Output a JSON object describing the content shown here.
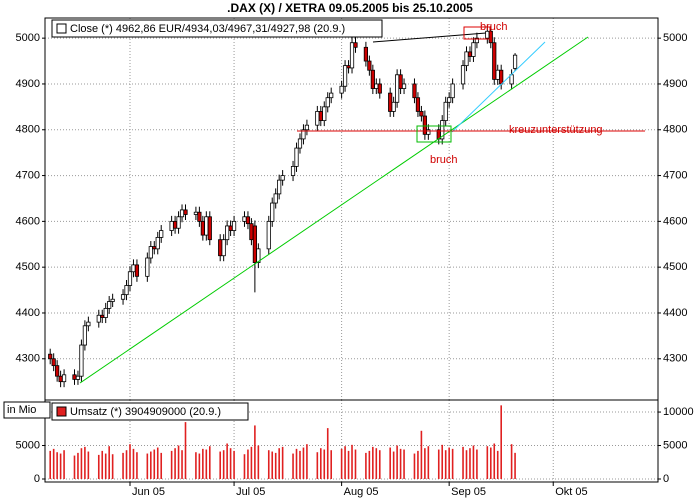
{
  "chart_data": [
    {
      "type": "candlestick",
      "title": ".DAX (X) / XETRA 09.05.2005 bis 25.10.2005",
      "annotations": [
        "bruch",
        "bruch",
        "kreuzunterstützung"
      ],
      "series": [
        {
          "name": "Close (*) 4962,86 EUR/4934,03/4967,31/4927,98 (20.9.)",
          "color": "#cc0000",
          "x": [
            0,
            1,
            2,
            3,
            4,
            7,
            8,
            9,
            10,
            11,
            14,
            15,
            16,
            17,
            18,
            21,
            22,
            23,
            24,
            25,
            28,
            29,
            30,
            31,
            32,
            35,
            36,
            37,
            38,
            39,
            42,
            43,
            44,
            45,
            46,
            49,
            50,
            51,
            52,
            53,
            56,
            57,
            58,
            59,
            60,
            63,
            64,
            65,
            66,
            67,
            70,
            71,
            72,
            73,
            74,
            77,
            78,
            79,
            80,
            81,
            84,
            85,
            86,
            87,
            88,
            91,
            92,
            93,
            94,
            95,
            98,
            99,
            100,
            101,
            102,
            105,
            106,
            107,
            108,
            109,
            112,
            113,
            114,
            115,
            116,
            119,
            120,
            121,
            122,
            123,
            126,
            127,
            128,
            129,
            130,
            133,
            134
          ],
          "open": [
            4310,
            4300,
            4285,
            4262,
            4250,
            4265,
            4255,
            4262,
            4330,
            4372,
            4380,
            4395,
            4390,
            4410,
            4425,
            4430,
            4440,
            4460,
            4490,
            4505,
            4480,
            4520,
            4545,
            4540,
            4565,
            4580,
            4600,
            4585,
            4610,
            4625,
            4615,
            4620,
            4600,
            4570,
            4610,
            4560,
            4525,
            4560,
            4590,
            4580,
            4600,
            4610,
            4595,
            4590,
            4510,
            4540,
            4600,
            4640,
            4660,
            4690,
            4700,
            4720,
            4760,
            4780,
            4800,
            4810,
            4840,
            4820,
            4850,
            4870,
            4880,
            4895,
            4940,
            4935,
            4990,
            4980,
            4950,
            4930,
            4890,
            4900,
            4880,
            4840,
            4860,
            4920,
            4890,
            4900,
            4870,
            4840,
            4830,
            4790,
            4800,
            4780,
            4820,
            4860,
            4870,
            4900,
            4940,
            4970,
            4960,
            4990,
            5000,
            5015,
            4990,
            4910,
            4930,
            4900,
            4934.03
          ],
          "high": [
            4322,
            4312,
            4297,
            4274,
            4277,
            4277,
            4274,
            4342,
            4384,
            4392,
            4407,
            4407,
            4422,
            4437,
            4442,
            4452,
            4472,
            4502,
            4517,
            4517,
            4532,
            4557,
            4557,
            4577,
            4592,
            4612,
            4612,
            4622,
            4637,
            4637,
            4632,
            4632,
            4612,
            4622,
            4622,
            4572,
            4572,
            4602,
            4602,
            4612,
            4622,
            4622,
            4607,
            4602,
            4552,
            4612,
            4652,
            4672,
            4702,
            4712,
            4732,
            4772,
            4792,
            4812,
            4822,
            4852,
            4852,
            4862,
            4882,
            4892,
            4907,
            4952,
            4952,
            5002,
            5002,
            4992,
            4962,
            4942,
            4912,
            4912,
            4892,
            4872,
            4932,
            4932,
            4912,
            4912,
            4882,
            4852,
            4842,
            4812,
            4812,
            4832,
            4872,
            4882,
            4912,
            4952,
            4982,
            4982,
            5002,
            5012,
            5027,
            5027,
            5002,
            4942,
            4942,
            4932,
            4967.31
          ],
          "low": [
            4288,
            4273,
            4250,
            4238,
            4238,
            4243,
            4243,
            4250,
            4318,
            4360,
            4368,
            4378,
            4378,
            4398,
            4413,
            4418,
            4428,
            4448,
            4478,
            4468,
            4468,
            4508,
            4528,
            4528,
            4553,
            4568,
            4573,
            4573,
            4598,
            4603,
            4603,
            4588,
            4558,
            4558,
            4548,
            4513,
            4513,
            4548,
            4568,
            4568,
            4588,
            4583,
            4548,
            4445,
            4498,
            4528,
            4588,
            4628,
            4648,
            4678,
            4688,
            4708,
            4748,
            4768,
            4788,
            4798,
            4808,
            4808,
            4838,
            4858,
            4868,
            4883,
            4923,
            4923,
            4968,
            4938,
            4918,
            4878,
            4878,
            4868,
            4828,
            4828,
            4848,
            4878,
            4878,
            4858,
            4828,
            4818,
            4778,
            4778,
            4768,
            4768,
            4808,
            4848,
            4858,
            4888,
            4928,
            4948,
            4948,
            4978,
            4988,
            4978,
            4898,
            4898,
            4888,
            4888,
            4927.98
          ],
          "close": [
            4300,
            4285,
            4262,
            4250,
            4265,
            4255,
            4262,
            4330,
            4372,
            4380,
            4395,
            4390,
            4410,
            4425,
            4430,
            4440,
            4460,
            4490,
            4505,
            4480,
            4520,
            4545,
            4540,
            4565,
            4580,
            4600,
            4585,
            4610,
            4625,
            4615,
            4620,
            4600,
            4570,
            4610,
            4560,
            4525,
            4560,
            4590,
            4580,
            4600,
            4610,
            4595,
            4560,
            4510,
            4540,
            4600,
            4640,
            4660,
            4690,
            4700,
            4720,
            4760,
            4780,
            4800,
            4810,
            4840,
            4820,
            4850,
            4870,
            4880,
            4895,
            4940,
            4935,
            4990,
            4980,
            4950,
            4930,
            4890,
            4900,
            4880,
            4840,
            4860,
            4920,
            4890,
            4900,
            4870,
            4840,
            4830,
            4790,
            4800,
            4780,
            4820,
            4860,
            4870,
            4900,
            4940,
            4970,
            4960,
            4990,
            5000,
            5015,
            4990,
            4910,
            4930,
            4900,
            4920,
            4962.86
          ]
        }
      ],
      "xlim": [
        -1.5,
        175.2
      ],
      "ylim": [
        4210,
        5044
      ],
      "yticks": [
        4300,
        4400,
        4500,
        4600,
        4700,
        4800,
        4900,
        5000
      ],
      "grid": true
    },
    {
      "type": "bar",
      "y_label": "in Mio",
      "series": [
        {
          "name": "Umsatz (*) 3904909000 (20.9.)",
          "color": "#e02020",
          "x": [
            0,
            1,
            2,
            3,
            4,
            7,
            8,
            9,
            10,
            11,
            14,
            15,
            16,
            17,
            18,
            21,
            22,
            23,
            24,
            25,
            28,
            29,
            30,
            31,
            32,
            35,
            36,
            37,
            38,
            39,
            42,
            43,
            44,
            45,
            46,
            49,
            50,
            51,
            52,
            53,
            56,
            57,
            58,
            59,
            60,
            63,
            64,
            65,
            66,
            67,
            70,
            71,
            72,
            73,
            74,
            77,
            78,
            79,
            80,
            81,
            84,
            85,
            86,
            87,
            88,
            91,
            92,
            93,
            94,
            95,
            98,
            99,
            100,
            101,
            102,
            105,
            106,
            107,
            108,
            109,
            112,
            113,
            114,
            115,
            116,
            119,
            120,
            121,
            122,
            123,
            126,
            127,
            128,
            129,
            130,
            133,
            134
          ],
          "values": [
            4200,
            4500,
            4000,
            3800,
            4300,
            3500,
            3900,
            4600,
            4800,
            4100,
            3600,
            4200,
            3800,
            4900,
            3700,
            3900,
            4300,
            5200,
            4500,
            4000,
            3800,
            4100,
            4400,
            4700,
            3900,
            4200,
            4600,
            5000,
            4300,
            8500,
            4000,
            3800,
            4500,
            4400,
            4900,
            4100,
            4300,
            5300,
            4600,
            4200,
            3700,
            4400,
            4800,
            8000,
            5000,
            4300,
            4100,
            3900,
            4600,
            4800,
            3800,
            4500,
            4200,
            4700,
            5200,
            4000,
            4600,
            4400,
            7600,
            4300,
            4500,
            4900,
            4200,
            5100,
            4400,
            3900,
            4200,
            4800,
            4600,
            4300,
            4700,
            4100,
            5000,
            4500,
            4400,
            3800,
            4200,
            7200,
            4600,
            4900,
            4400,
            5100,
            4300,
            4700,
            4500,
            4800,
            4300,
            4600,
            5000,
            4400,
            4900,
            4700,
            5300,
            4200,
            11000,
            5200,
            3904.909
          ]
        }
      ],
      "xlim": [
        -1.5,
        175.2
      ],
      "ylim": [
        -450,
        11800
      ],
      "yticks": [
        0,
        5000,
        10000
      ],
      "xticks": [
        {
          "value": 23,
          "label": "Jun 05"
        },
        {
          "value": 53,
          "label": "Jul 05"
        },
        {
          "value": 84,
          "label": "Aug 05"
        },
        {
          "value": 115,
          "label": "Sep 05"
        },
        {
          "value": 145,
          "label": "Okt 05"
        }
      ],
      "grid": true
    }
  ]
}
